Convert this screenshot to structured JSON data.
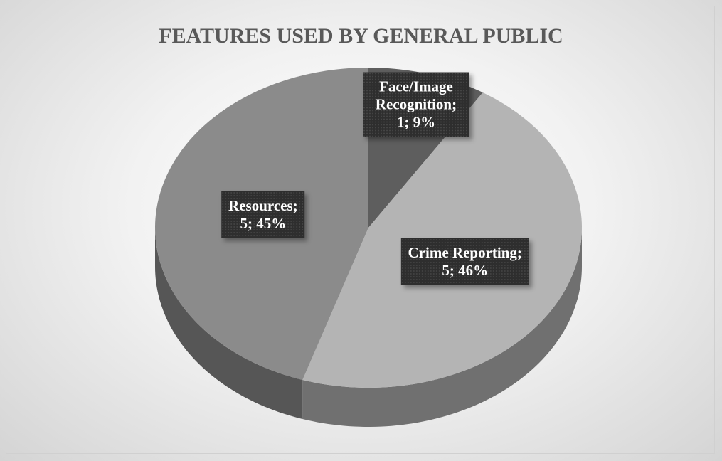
{
  "chart_data": {
    "type": "pie3d",
    "title": "FEATURES USED BY GENERAL PUBLIC",
    "categories": [
      "Face/Image Recognition;",
      "Crime Reporting;",
      "Resources;"
    ],
    "values": [
      9,
      46,
      45
    ],
    "value_labels": [
      "1; 9%",
      "5; 46%",
      "5; 45%"
    ],
    "colors": [
      "#5e5e5e",
      "#b4b4b4",
      "#8b8b8b"
    ]
  }
}
